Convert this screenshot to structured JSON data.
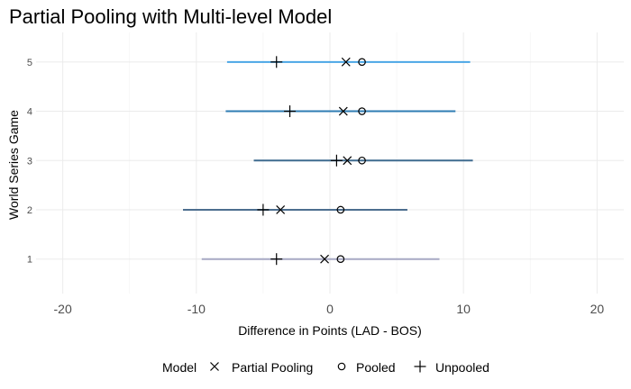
{
  "chart_data": {
    "type": "scatter",
    "title": "Partial Pooling with Multi-level Model",
    "xlabel": "Difference in Points (LAD - BOS)",
    "ylabel": "World Series Game",
    "xlim": [
      -22,
      22
    ],
    "x_ticks": [
      -20,
      -10,
      0,
      10,
      20
    ],
    "x_minor_ticks": [
      -15,
      -5,
      5,
      15
    ],
    "ylim": [
      0.3,
      5.6
    ],
    "y_ticks": [
      1,
      2,
      3,
      4,
      5
    ],
    "grid": true,
    "legend": {
      "title": "Model",
      "position": "bottom",
      "entries": [
        {
          "label": "Partial Pooling",
          "shape": "cross-x"
        },
        {
          "label": "Pooled",
          "shape": "circle-open"
        },
        {
          "label": "Unpooled",
          "shape": "plus"
        }
      ]
    },
    "intervals": [
      {
        "game": "1",
        "y": 1,
        "low": -9.6,
        "high": 8.2,
        "color": "#a7a9c4"
      },
      {
        "game": "2",
        "y": 2,
        "low": -11.0,
        "high": 5.8,
        "color": "#4d6e8f"
      },
      {
        "game": "3",
        "y": 3,
        "low": -5.7,
        "high": 10.7,
        "color": "#3f6b8f"
      },
      {
        "game": "4",
        "y": 4,
        "low": -7.8,
        "high": 9.4,
        "color": "#2f7db3"
      },
      {
        "game": "5",
        "y": 5,
        "low": -7.7,
        "high": 10.5,
        "color": "#4aa6e6"
      }
    ],
    "series": [
      {
        "name": "Partial Pooling",
        "shape": "cross-x",
        "points": [
          {
            "game": "1",
            "x": -0.4
          },
          {
            "game": "2",
            "x": -3.7
          },
          {
            "game": "3",
            "x": 1.3
          },
          {
            "game": "4",
            "x": 1.0
          },
          {
            "game": "5",
            "x": 1.2
          }
        ]
      },
      {
        "name": "Pooled",
        "shape": "circle-open",
        "points": [
          {
            "game": "1",
            "x": 0.8
          },
          {
            "game": "2",
            "x": 0.8
          },
          {
            "game": "3",
            "x": 2.4
          },
          {
            "game": "4",
            "x": 2.4
          },
          {
            "game": "5",
            "x": 2.4
          }
        ]
      },
      {
        "name": "Unpooled",
        "shape": "plus",
        "points": [
          {
            "game": "1",
            "x": -4.0
          },
          {
            "game": "2",
            "x": -5.0
          },
          {
            "game": "3",
            "x": 0.5
          },
          {
            "game": "4",
            "x": -3.0
          },
          {
            "game": "5",
            "x": -4.0
          }
        ]
      }
    ]
  }
}
